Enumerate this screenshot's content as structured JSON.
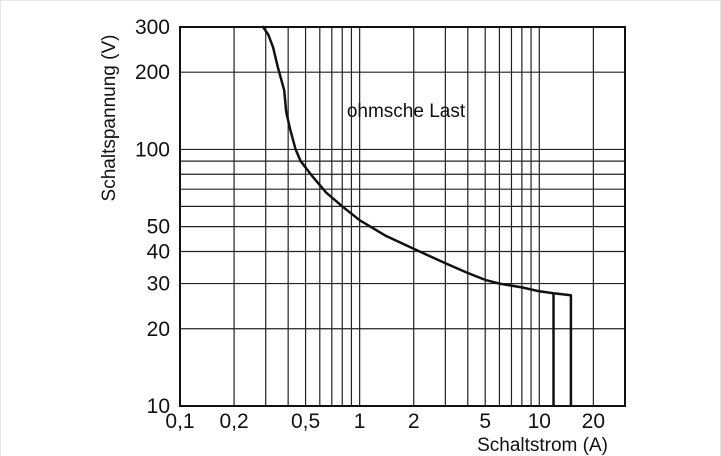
{
  "chart_data": {
    "type": "line",
    "title": "",
    "annotation": "ohmsche Last",
    "xlabel": "Schaltstrom (A)",
    "ylabel": "Schaltspannung (V)",
    "x_scale": "log",
    "y_scale": "log",
    "xlim": [
      0.1,
      30
    ],
    "ylim": [
      10,
      300
    ],
    "grid": true,
    "x_ticks": [
      {
        "value": 0.1,
        "label": "0,1"
      },
      {
        "value": 0.2,
        "label": "0,2"
      },
      {
        "value": 0.5,
        "label": "0,5"
      },
      {
        "value": 1,
        "label": "1"
      },
      {
        "value": 2,
        "label": "2"
      },
      {
        "value": 5,
        "label": "5"
      },
      {
        "value": 10,
        "label": "10"
      },
      {
        "value": 20,
        "label": "20"
      }
    ],
    "y_ticks": [
      {
        "value": 10,
        "label": "10"
      },
      {
        "value": 20,
        "label": "20"
      },
      {
        "value": 30,
        "label": "30"
      },
      {
        "value": 40,
        "label": "40"
      },
      {
        "value": 50,
        "label": "50"
      },
      {
        "value": 100,
        "label": "100"
      },
      {
        "value": 200,
        "label": "200"
      },
      {
        "value": 300,
        "label": "300"
      }
    ],
    "x_grid": [
      0.1,
      0.2,
      0.3,
      0.4,
      0.5,
      0.6,
      0.7,
      0.8,
      0.9,
      1,
      2,
      3,
      4,
      5,
      6,
      7,
      8,
      9,
      10,
      20,
      30
    ],
    "y_grid": [
      10,
      20,
      30,
      40,
      50,
      60,
      70,
      80,
      90,
      100,
      200,
      300
    ],
    "series": [
      {
        "values": [
          {
            "x": 0.29,
            "y": 300
          },
          {
            "x": 0.31,
            "y": 280
          },
          {
            "x": 0.33,
            "y": 250
          },
          {
            "x": 0.35,
            "y": 210
          },
          {
            "x": 0.38,
            "y": 170
          },
          {
            "x": 0.39,
            "y": 140
          },
          {
            "x": 0.41,
            "y": 120
          },
          {
            "x": 0.44,
            "y": 100
          },
          {
            "x": 0.47,
            "y": 90
          },
          {
            "x": 0.55,
            "y": 78
          },
          {
            "x": 0.65,
            "y": 68
          },
          {
            "x": 0.8,
            "y": 60
          },
          {
            "x": 1,
            "y": 53
          },
          {
            "x": 1.4,
            "y": 46
          },
          {
            "x": 2,
            "y": 41
          },
          {
            "x": 3,
            "y": 36
          },
          {
            "x": 4,
            "y": 33
          },
          {
            "x": 5,
            "y": 31
          },
          {
            "x": 6,
            "y": 30
          },
          {
            "x": 8,
            "y": 29
          },
          {
            "x": 10,
            "y": 28
          },
          {
            "x": 12,
            "y": 27.5
          },
          {
            "x": 15,
            "y": 27
          }
        ],
        "drop_lines_x": [
          12,
          15
        ]
      }
    ]
  }
}
